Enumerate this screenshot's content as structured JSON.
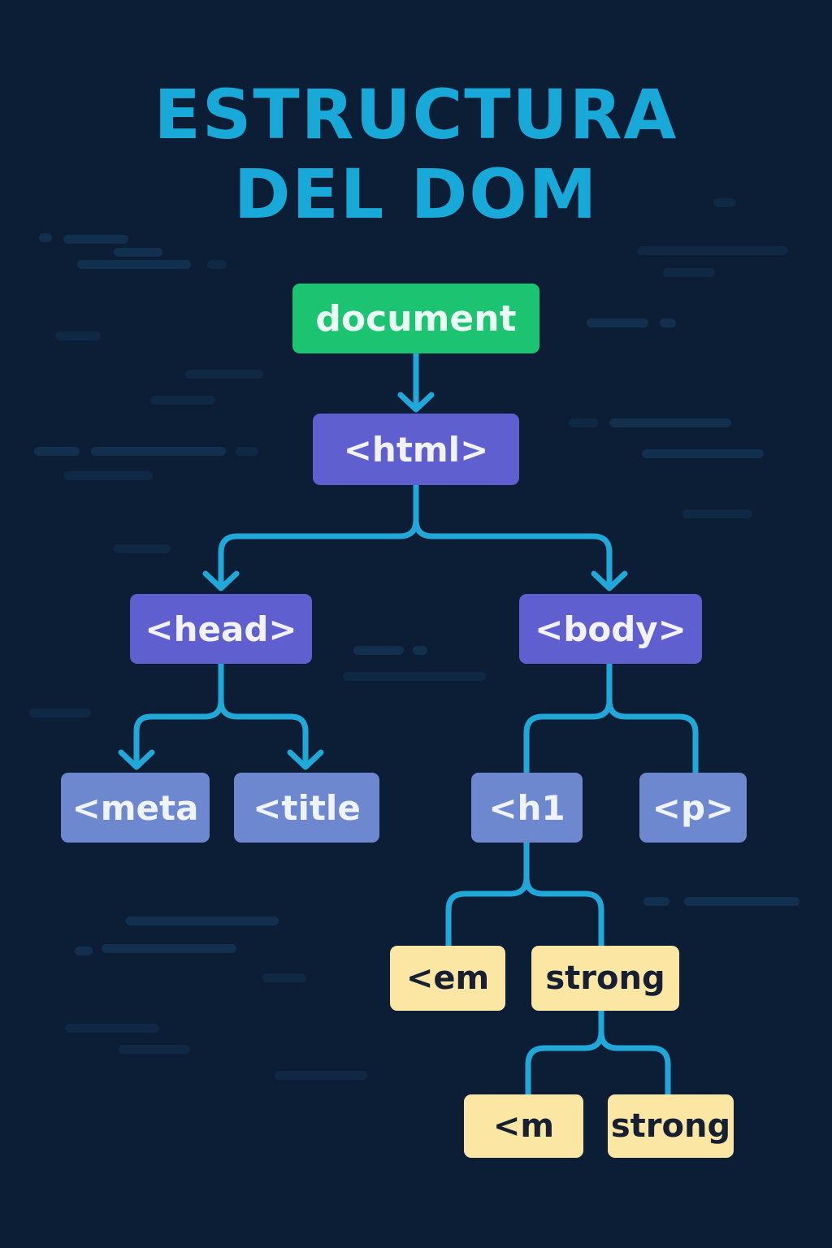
{
  "title": {
    "line1": "ESTRUCTURA",
    "line2": "DEL DOM"
  },
  "colors": {
    "background": "#0b1e36",
    "title": "#19a9d9",
    "connector": "#22a8d8",
    "root_node": "#1cc371",
    "level1_node": "#5f5fcf",
    "level2_node": "#6e88cf",
    "level3_node": "#fbe6a4"
  },
  "nodes": {
    "document": "document",
    "html": "<html>",
    "head": "<head>",
    "body": "<body>",
    "meta": "<meta",
    "title": "<title",
    "h1": "<h1",
    "p": "<p>",
    "em": "<em",
    "strong": "strong",
    "em_child": "<m",
    "strong_child": "strong"
  }
}
